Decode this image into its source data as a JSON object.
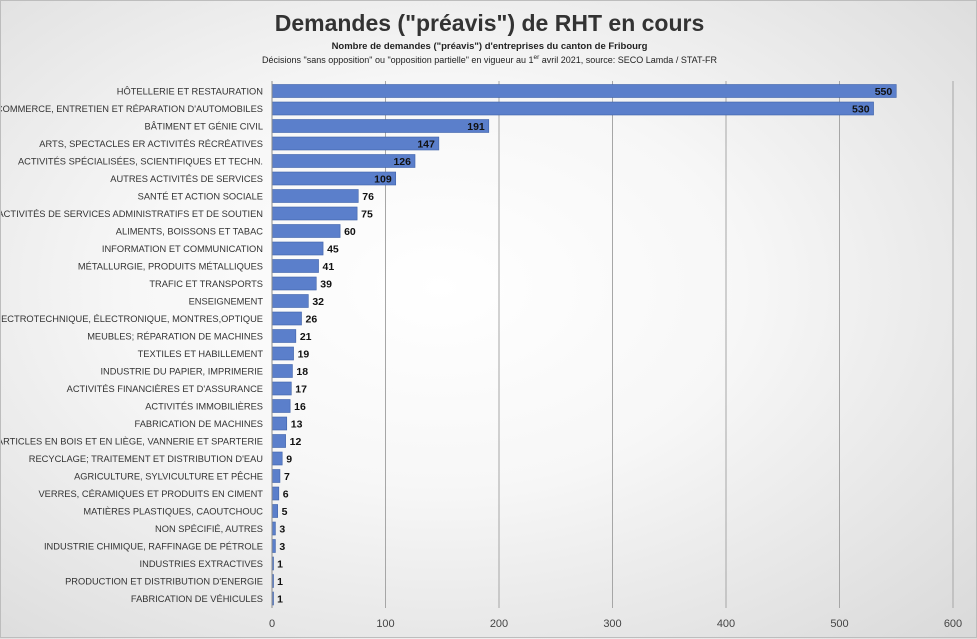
{
  "chart_data": {
    "type": "bar",
    "orientation": "horizontal",
    "title": "Demandes (\"préavis\") de RHT en cours",
    "subtitle": "Nombre de demandes (\"préavis\") d'entreprises du canton de Fribourg",
    "note": "Décisions \"sans opposition\" ou \"opposition partielle\" en vigueur au 1er avril 2021, source: SECO Lamda / STAT-FR",
    "categories": [
      "HÔTELLERIE ET RESTAURATION",
      "COMMERCE, ENTRETIEN ET RÉPARATION D'AUTOMOBILES",
      "BÂTIMENT ET GÉNIE CIVIL",
      "ARTS, SPECTACLES ER ACTIVITÉS RÉCRÉATIVES",
      "ACTIVITÉS SPÉCIALISÉES, SCIENTIFIQUES ET TECHN.",
      "AUTRES ACTIVITÉS DE SERVICES",
      "SANTÉ ET ACTION SOCIALE",
      "ACTIVITÉS DE SERVICES ADMINISTRATIFS ET DE SOUTIEN",
      "ALIMENTS, BOISSONS ET TABAC",
      "INFORMATION ET COMMUNICATION",
      "MÉTALLURGIE, PRODUITS MÉTALLIQUES",
      "TRAFIC ET TRANSPORTS",
      "ENSEIGNEMENT",
      "ELECTROTECHNIQUE, ÉLECTRONIQUE, MONTRES,OPTIQUE",
      "MEUBLES; RÉPARATION DE MACHINES",
      "TEXTILES ET HABILLEMENT",
      "INDUSTRIE DU PAPIER, IMPRIMERIE",
      "ACTIVITÉS FINANCIÈRES ET D'ASSURANCE",
      "ACTIVITÉS IMMOBILIÈRES",
      "FABRICATION DE MACHINES",
      "ARTICLES EN BOIS ET EN LIÈGE, VANNERIE ET SPARTERIE",
      "RECYCLAGE; TRAITEMENT ET DISTRIBUTION D'EAU",
      "AGRICULTURE, SYLVICULTURE ET PÊCHE",
      "VERRES, CÉRAMIQUES ET PRODUITS EN CIMENT",
      "MATIÈRES PLASTIQUES, CAOUTCHOUC",
      "NON SPÉCIFIÉ, AUTRES",
      "INDUSTRIE CHIMIQUE, RAFFINAGE DE PÉTROLE",
      "INDUSTRIES EXTRACTIVES",
      "PRODUCTION ET DISTRIBUTION D'ENERGIE",
      "FABRICATION DE VÉHICULES"
    ],
    "values": [
      550,
      530,
      191,
      147,
      126,
      109,
      76,
      75,
      60,
      45,
      41,
      39,
      32,
      26,
      21,
      19,
      18,
      17,
      16,
      13,
      12,
      9,
      7,
      6,
      5,
      3,
      3,
      1,
      1,
      1
    ],
    "xlim": [
      0,
      600
    ],
    "xticks": [
      0,
      100,
      200,
      300,
      400,
      500,
      600
    ],
    "grid": "vertical",
    "legend": "none",
    "colors": {
      "bar": "#5b7fcb",
      "bar_edge": "#3f62a9",
      "grid": "#a6a6a6",
      "text": "#333333"
    }
  }
}
